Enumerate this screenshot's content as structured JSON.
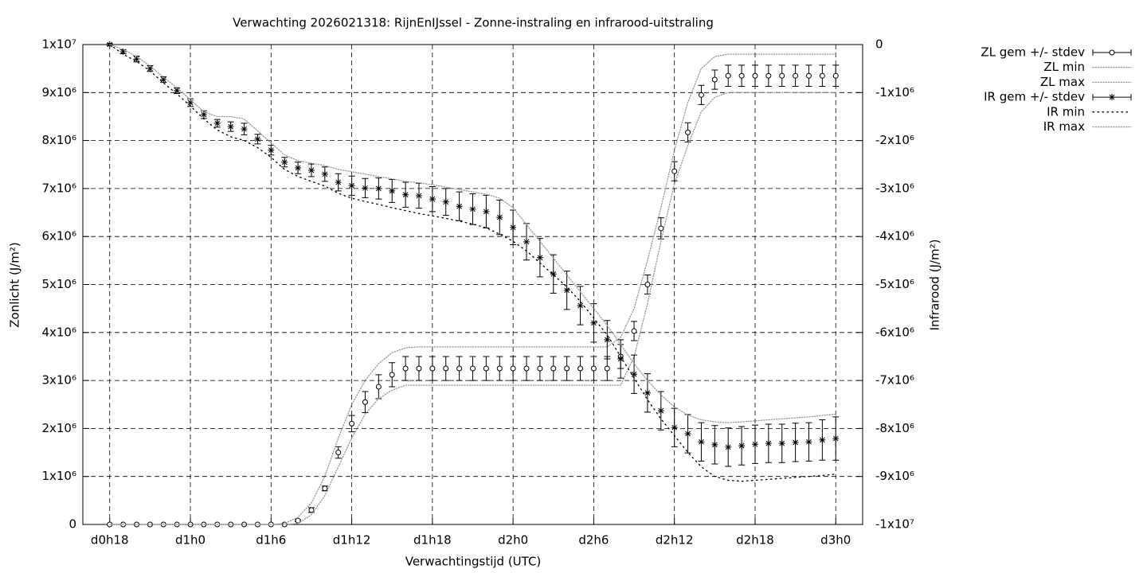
{
  "chart_data": {
    "type": "line",
    "title": "Verwachting 2026021318: RijnEnIJssel - Zonne-instraling en infrarood-uitstraling",
    "xlabel": "Verwachtingstijd (UTC)",
    "ylabel": "Zonlicht (J/m²)",
    "y2label": "Infrarood (J/m²)",
    "grid": true,
    "legend": "outside-top-right",
    "categories": [
      "d0h18",
      null,
      null,
      null,
      null,
      null,
      "d1h0",
      null,
      null,
      null,
      null,
      null,
      "d1h6",
      null,
      null,
      null,
      null,
      null,
      "d1h12",
      null,
      null,
      null,
      null,
      null,
      "d1h18",
      null,
      null,
      null,
      null,
      null,
      "d2h0",
      null,
      null,
      null,
      null,
      null,
      "d2h6",
      null,
      null,
      null,
      null,
      null,
      "d2h12",
      null,
      null,
      null,
      null,
      null,
      "d2h18",
      null,
      null,
      null,
      null,
      null,
      "d3h0"
    ],
    "ylim": [
      0,
      10000000
    ],
    "yticks": [
      0,
      {
        "value": 1000000,
        "label": "1x10⁶"
      },
      {
        "value": 2000000,
        "label": "2x10⁶"
      },
      {
        "value": 3000000,
        "label": "3x10⁶"
      },
      {
        "value": 4000000,
        "label": "4x10⁶"
      },
      {
        "value": 5000000,
        "label": "5x10⁶"
      },
      {
        "value": 6000000,
        "label": "6x10⁶"
      },
      {
        "value": 7000000,
        "label": "7x10⁶"
      },
      {
        "value": 8000000,
        "label": "8x10⁶"
      },
      {
        "value": 9000000,
        "label": "9x10⁶"
      },
      {
        "value": 10000000,
        "label": "1x10⁷"
      }
    ],
    "y2lim": [
      -10000000,
      0
    ],
    "y2ticks": [
      0,
      {
        "value": -1000000,
        "label": "-1x10⁶"
      },
      {
        "value": -2000000,
        "label": "-2x10⁶"
      },
      {
        "value": -3000000,
        "label": "-3x10⁶"
      },
      {
        "value": -4000000,
        "label": "-4x10⁶"
      },
      {
        "value": -5000000,
        "label": "-5x10⁶"
      },
      {
        "value": -6000000,
        "label": "-6x10⁶"
      },
      {
        "value": -7000000,
        "label": "-7x10⁶"
      },
      {
        "value": -8000000,
        "label": "-8x10⁶"
      },
      {
        "value": -9000000,
        "label": "-9x10⁶"
      },
      {
        "value": -10000000,
        "label": "-1x10⁷"
      }
    ],
    "series": [
      {
        "name": "ZL gem +/- stdev",
        "color": "#000000",
        "marker": "circle",
        "values": [
          0,
          0,
          0,
          0,
          0,
          0,
          0,
          0,
          0,
          0,
          0,
          0,
          0,
          0,
          80000,
          300000,
          750000,
          1500000,
          2100000,
          2550000,
          2870000,
          3120000,
          3250000,
          3250000,
          3250000,
          3250000,
          3250000,
          3250000,
          3250000,
          3250000,
          3250000,
          3250000,
          3250000,
          3250000,
          3250000,
          3250000,
          3250000,
          3250000,
          3500000,
          4030000,
          5000000,
          6170000,
          7360000,
          8170000,
          8950000,
          9270000,
          9350000,
          9350000,
          9350000,
          9350000,
          9350000,
          9350000,
          9350000,
          9350000,
          9350000
        ],
        "errors": [
          0,
          0,
          0,
          0,
          0,
          0,
          0,
          0,
          0,
          0,
          0,
          0,
          0,
          0,
          20000,
          50000,
          50000,
          120000,
          170000,
          220000,
          250000,
          250000,
          250000,
          250000,
          250000,
          250000,
          250000,
          250000,
          250000,
          250000,
          250000,
          250000,
          250000,
          250000,
          250000,
          250000,
          250000,
          250000,
          250000,
          200000,
          200000,
          220000,
          200000,
          200000,
          200000,
          200000,
          220000,
          220000,
          220000,
          220000,
          220000,
          220000,
          220000,
          220000,
          220000
        ]
      },
      {
        "name": "ZL min",
        "color": "#999999",
        "values": [
          0,
          0,
          0,
          0,
          0,
          0,
          0,
          0,
          0,
          0,
          0,
          0,
          0,
          0,
          20000,
          200000,
          600000,
          1200000,
          1800000,
          2300000,
          2620000,
          2800000,
          2900000,
          2900000,
          2900000,
          2900000,
          2900000,
          2900000,
          2900000,
          2900000,
          2900000,
          2900000,
          2900000,
          2900000,
          2900000,
          2900000,
          2900000,
          2900000,
          2900000,
          3500000,
          4600000,
          5900000,
          7100000,
          7900000,
          8600000,
          8900000,
          9000000,
          9000000,
          9000000,
          9000000,
          9000000,
          9000000,
          9000000,
          9000000,
          9000000
        ]
      },
      {
        "name": "ZL max",
        "color": "#999999",
        "values": [
          0,
          0,
          0,
          0,
          0,
          0,
          0,
          0,
          0,
          0,
          0,
          0,
          0,
          20000,
          150000,
          450000,
          1000000,
          1800000,
          2500000,
          3000000,
          3350000,
          3580000,
          3680000,
          3700000,
          3700000,
          3700000,
          3700000,
          3700000,
          3700000,
          3700000,
          3700000,
          3700000,
          3700000,
          3700000,
          3700000,
          3700000,
          3700000,
          3700000,
          3900000,
          4500000,
          5500000,
          6600000,
          7800000,
          8800000,
          9500000,
          9750000,
          9800000,
          9800000,
          9800000,
          9800000,
          9800000,
          9800000,
          9800000,
          9800000,
          9800000
        ]
      },
      {
        "name": "IR gem +/- stdev",
        "color": "#000000",
        "marker": "star",
        "axis": "y2",
        "values": [
          0,
          -150000,
          -300000,
          -500000,
          -730000,
          -960000,
          -1210000,
          -1460000,
          -1640000,
          -1710000,
          -1760000,
          -1970000,
          -2200000,
          -2450000,
          -2570000,
          -2620000,
          -2700000,
          -2870000,
          -2940000,
          -2990000,
          -3000000,
          -3050000,
          -3130000,
          -3150000,
          -3220000,
          -3280000,
          -3370000,
          -3430000,
          -3480000,
          -3600000,
          -3810000,
          -4110000,
          -4440000,
          -4780000,
          -5120000,
          -5440000,
          -5800000,
          -6150000,
          -6550000,
          -6870000,
          -7260000,
          -7630000,
          -7980000,
          -8110000,
          -8280000,
          -8340000,
          -8390000,
          -8360000,
          -8330000,
          -8310000,
          -8310000,
          -8290000,
          -8280000,
          -8240000,
          -8210000
        ],
        "errors": [
          20000,
          40000,
          60000,
          60000,
          60000,
          60000,
          80000,
          80000,
          80000,
          100000,
          120000,
          100000,
          100000,
          100000,
          120000,
          130000,
          150000,
          180000,
          200000,
          200000,
          220000,
          240000,
          260000,
          260000,
          260000,
          280000,
          300000,
          320000,
          340000,
          360000,
          360000,
          380000,
          400000,
          400000,
          400000,
          400000,
          400000,
          400000,
          400000,
          400000,
          400000,
          400000,
          400000,
          400000,
          400000,
          400000,
          400000,
          400000,
          400000,
          400000,
          400000,
          400000,
          400000,
          420000,
          450000
        ]
      },
      {
        "name": "IR min",
        "color": "#000000",
        "axis": "y2",
        "values": [
          0,
          -200000,
          -350000,
          -550000,
          -800000,
          -1030000,
          -1280000,
          -1550000,
          -1780000,
          -1920000,
          -2000000,
          -2150000,
          -2350000,
          -2600000,
          -2750000,
          -2850000,
          -2950000,
          -3100000,
          -3200000,
          -3270000,
          -3330000,
          -3400000,
          -3460000,
          -3520000,
          -3570000,
          -3620000,
          -3680000,
          -3740000,
          -3820000,
          -3950000,
          -4100000,
          -4300000,
          -4550000,
          -4800000,
          -5050000,
          -5350000,
          -5700000,
          -6050000,
          -6500000,
          -6950000,
          -7400000,
          -7800000,
          -8150000,
          -8500000,
          -8800000,
          -9000000,
          -9080000,
          -9100000,
          -9080000,
          -9060000,
          -9040000,
          -9020000,
          -9000000,
          -8980000,
          -8950000
        ]
      },
      {
        "name": "IR max",
        "color": "#999999",
        "axis": "y2",
        "values": [
          0,
          -100000,
          -250000,
          -450000,
          -680000,
          -900000,
          -1150000,
          -1400000,
          -1500000,
          -1500000,
          -1550000,
          -1800000,
          -2050000,
          -2300000,
          -2420000,
          -2470000,
          -2520000,
          -2600000,
          -2650000,
          -2700000,
          -2750000,
          -2800000,
          -2850000,
          -2880000,
          -2920000,
          -2970000,
          -3020000,
          -3070000,
          -3120000,
          -3200000,
          -3400000,
          -3750000,
          -4100000,
          -4450000,
          -4800000,
          -5150000,
          -5500000,
          -5850000,
          -6250000,
          -6650000,
          -7000000,
          -7300000,
          -7550000,
          -7720000,
          -7820000,
          -7860000,
          -7880000,
          -7860000,
          -7840000,
          -7820000,
          -7800000,
          -7780000,
          -7760000,
          -7730000,
          -7700000
        ]
      }
    ]
  }
}
